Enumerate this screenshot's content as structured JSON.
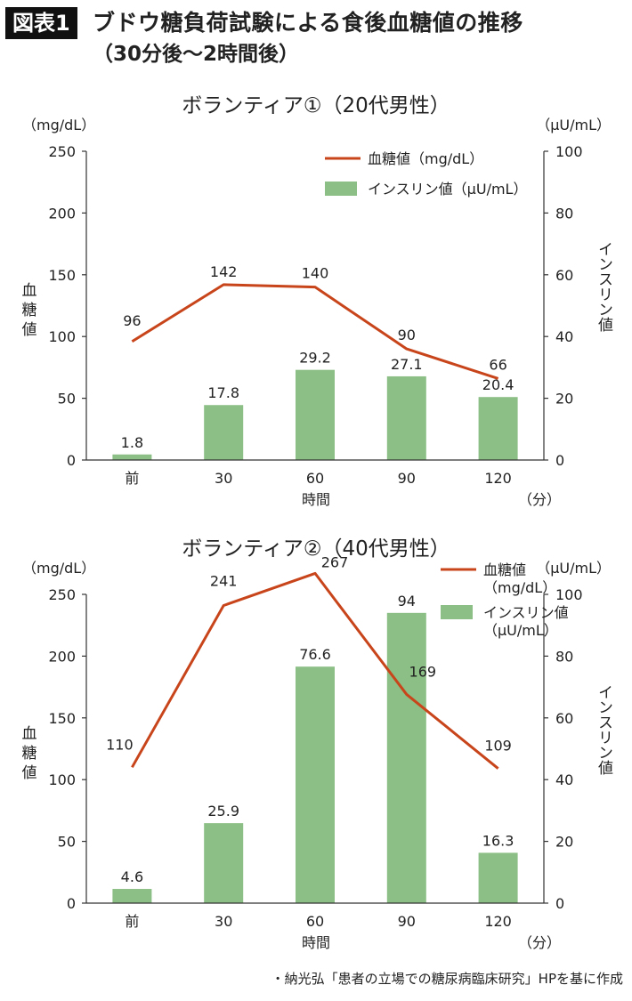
{
  "header": {
    "figure_label": "図表1",
    "title": "ブドウ糖負荷試験による食後血糖値の推移",
    "subtitle": "（30分後～2時間後）"
  },
  "chart_data": [
    {
      "type": "bar",
      "title": "ボランティア①（20代男性）",
      "categories": [
        "前",
        "30",
        "60",
        "90",
        "120"
      ],
      "xlabel": "時間",
      "x_unit": "（分）",
      "ylabel": "血糖値",
      "y_unit": "（mg/dL）",
      "ylim": [
        0,
        250
      ],
      "yticks": [
        0,
        50,
        100,
        150,
        200,
        250
      ],
      "y2label": "インスリン値",
      "y2_unit": "（μU/mL）",
      "y2lim": [
        0,
        100
      ],
      "y2ticks": [
        0,
        20,
        40,
        60,
        80,
        100
      ],
      "series": [
        {
          "name": "血糖値（mg/dL）",
          "type": "line",
          "axis": "left",
          "color": "#C8451B",
          "values": [
            96,
            142,
            140,
            90,
            66
          ],
          "labels": [
            "96",
            "142",
            "140",
            "90",
            "66"
          ]
        },
        {
          "name": "インスリン値（μU/mL）",
          "type": "bar",
          "axis": "right",
          "color": "#8BBF85",
          "values": [
            1.8,
            17.8,
            29.2,
            27.1,
            20.4
          ],
          "labels": [
            "1.8",
            "17.8",
            "29.2",
            "27.1",
            "20.4"
          ]
        }
      ],
      "legend": {
        "position": "top-right",
        "entries": [
          "血糖値（mg/dL）",
          "インスリン値（μU/mL）"
        ]
      },
      "grid": false
    },
    {
      "type": "bar",
      "title": "ボランティア②（40代男性）",
      "categories": [
        "前",
        "30",
        "60",
        "90",
        "120"
      ],
      "xlabel": "時間",
      "x_unit": "（分）",
      "ylabel": "血糖値",
      "y_unit": "（mg/dL）",
      "ylim": [
        0,
        250
      ],
      "yticks": [
        0,
        50,
        100,
        150,
        200,
        250
      ],
      "y2label": "インスリン値",
      "y2_unit": "（μU/mL）",
      "y2lim": [
        0,
        100
      ],
      "y2ticks": [
        0,
        20,
        40,
        60,
        80,
        100
      ],
      "series": [
        {
          "name": "血糖値（mg/dL）",
          "type": "line",
          "axis": "left",
          "color": "#C8451B",
          "values": [
            110,
            241,
            267,
            169,
            109
          ],
          "labels": [
            "110",
            "241",
            "267",
            "169",
            "109"
          ]
        },
        {
          "name": "インスリン値（μU/mL）",
          "type": "bar",
          "axis": "right",
          "color": "#8BBF85",
          "values": [
            4.6,
            25.9,
            76.6,
            94,
            16.3
          ],
          "labels": [
            "4.6",
            "25.9",
            "76.6",
            "94",
            "16.3"
          ]
        }
      ],
      "legend": {
        "position": "top-right",
        "entries": [
          "血糖値（mg/dL）",
          "インスリン値（μU/mL）"
        ],
        "entry_lines": [
          [
            "血糖値",
            "（mg/dL）"
          ],
          [
            "インスリン値",
            "（μU/mL）"
          ]
        ]
      },
      "grid": false
    }
  ],
  "footer": {
    "source": "・納光弘「患者の立場での糖尿病臨床研究」HPを基に作成"
  }
}
